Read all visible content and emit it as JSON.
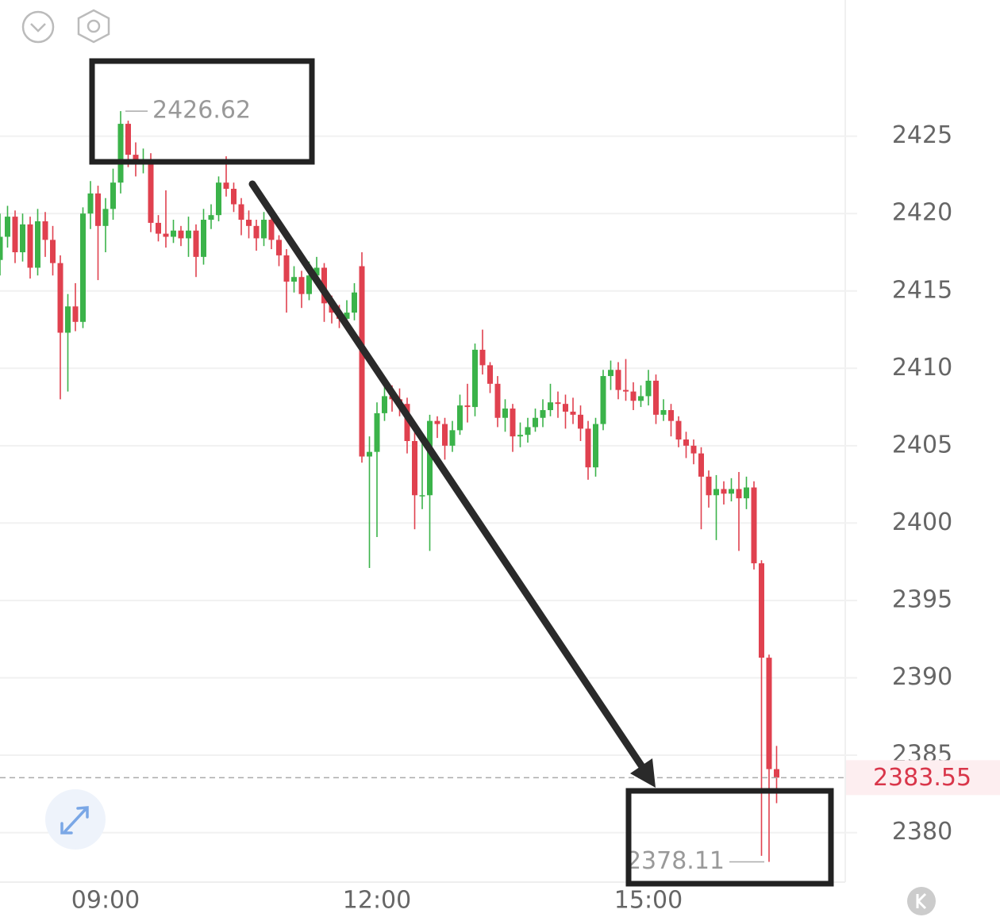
{
  "chart_data": {
    "type": "candlestick",
    "categories": [
      null,
      null,
      null,
      null,
      null,
      null,
      null,
      null,
      null,
      null,
      null,
      null,
      null,
      null,
      "09:00",
      null,
      null,
      null,
      null,
      null,
      null,
      null,
      null,
      null,
      null,
      null,
      null,
      null,
      null,
      null,
      null,
      null,
      null,
      null,
      null,
      null,
      null,
      null,
      null,
      null,
      null,
      null,
      null,
      null,
      null,
      null,
      null,
      null,
      null,
      null,
      "12:00",
      null,
      null,
      null,
      null,
      null,
      null,
      null,
      null,
      null,
      null,
      null,
      null,
      null,
      null,
      null,
      null,
      null,
      null,
      null,
      null,
      null,
      null,
      null,
      null,
      null,
      null,
      null,
      null,
      null,
      null,
      null,
      null,
      null,
      null,
      null,
      "15:00",
      null,
      null,
      null,
      null,
      null,
      null,
      null,
      null,
      null,
      null,
      null,
      null,
      null,
      null,
      null,
      null,
      null
    ],
    "open": [
      2417.0,
      2418.5,
      2419.8,
      2417.5,
      2419.3,
      2416.5,
      2419.5,
      2418.3,
      2416.8,
      2412.3,
      2414.0,
      2413.0,
      2420.0,
      2421.3,
      2419.2,
      2420.3,
      2422.0,
      2425.8,
      2423.8,
      2423.2,
      2423.5,
      2419.4,
      2418.7,
      2418.5,
      2418.9,
      2418.4,
      2418.9,
      2417.2,
      2419.6,
      2419.9,
      2422.0,
      2421.6,
      2420.6,
      2419.6,
      2419.2,
      2418.4,
      2419.6,
      2418.3,
      2417.3,
      2415.6,
      2415.9,
      2414.8,
      2416.0,
      2416.5,
      2414.2,
      2413.6,
      2413.2,
      2413.6,
      2416.6,
      2404.3,
      2404.6,
      2407.1,
      2408.2,
      2408.0,
      2407.7,
      2405.3,
      2401.8,
      2401.8,
      2406.6,
      2406.4,
      2405.0,
      2406.0,
      2407.6,
      2407.5,
      2411.2,
      2410.2,
      2409.0,
      2406.8,
      2407.4,
      2405.6,
      2405.7,
      2406.2,
      2406.8,
      2407.3,
      2407.8,
      2407.7,
      2407.2,
      2407.0,
      2406.1,
      2403.6,
      2406.4,
      2409.5,
      2409.9,
      2408.6,
      2408.5,
      2407.9,
      2408.2,
      2409.2,
      2407.0,
      2407.3,
      2406.6,
      2405.4,
      2405.0,
      2404.5,
      2403.0,
      2401.8,
      2402.2,
      2401.9,
      2402.2,
      2401.6,
      2402.3,
      2397.4,
      2391.3,
      2384.1
    ],
    "high": [
      2420.0,
      2420.5,
      2420.2,
      2420.0,
      2419.8,
      2420.3,
      2420.1,
      2419.2,
      2417.3,
      2414.8,
      2415.5,
      2420.4,
      2422.1,
      2421.8,
      2421.0,
      2422.9,
      2426.62,
      2426.0,
      2424.6,
      2424.2,
      2423.9,
      2419.9,
      2421.5,
      2419.6,
      2419.2,
      2419.8,
      2419.3,
      2420.3,
      2420.6,
      2422.4,
      2423.7,
      2422.0,
      2421.0,
      2420.2,
      2419.6,
      2420.1,
      2419.9,
      2418.6,
      2417.7,
      2416.6,
      2416.3,
      2416.9,
      2417.2,
      2416.8,
      2414.7,
      2414.1,
      2414.4,
      2415.5,
      2417.5,
      2405.6,
      2407.8,
      2409.0,
      2408.9,
      2408.7,
      2408.1,
      2405.9,
      2405.2,
      2407.0,
      2406.9,
      2406.8,
      2406.6,
      2408.3,
      2409.0,
      2411.6,
      2412.5,
      2410.4,
      2409.5,
      2408.0,
      2407.7,
      2406.5,
      2406.8,
      2407.4,
      2408.0,
      2409.0,
      2408.5,
      2408.3,
      2408.1,
      2407.6,
      2406.6,
      2406.8,
      2409.9,
      2410.5,
      2410.4,
      2410.6,
      2409.1,
      2408.9,
      2409.9,
      2409.6,
      2408.0,
      2407.7,
      2406.9,
      2405.9,
      2405.4,
      2404.9,
      2403.4,
      2403.1,
      2402.7,
      2402.9,
      2403.3,
      2403.0,
      2402.7,
      2397.6,
      2391.5,
      2385.6
    ],
    "low": [
      2416.0,
      2417.8,
      2416.8,
      2416.9,
      2415.8,
      2416.0,
      2417.2,
      2416.0,
      2408.0,
      2408.5,
      2412.4,
      2412.6,
      2419.0,
      2415.7,
      2417.5,
      2419.6,
      2421.3,
      2423.0,
      2422.4,
      2422.6,
      2418.8,
      2418.2,
      2417.8,
      2418.1,
      2417.9,
      2417.2,
      2415.9,
      2416.7,
      2419.0,
      2419.5,
      2421.1,
      2420.1,
      2418.6,
      2418.4,
      2417.6,
      2417.9,
      2417.7,
      2416.6,
      2413.6,
      2414.9,
      2413.9,
      2414.4,
      2415.4,
      2413.0,
      2412.9,
      2412.6,
      2412.8,
      2413.1,
      2403.9,
      2397.1,
      2399.1,
      2406.6,
      2407.2,
      2406.9,
      2404.5,
      2399.6,
      2400.9,
      2398.2,
      2405.5,
      2404.1,
      2404.6,
      2405.7,
      2406.5,
      2406.9,
      2409.6,
      2408.4,
      2406.2,
      2405.9,
      2404.6,
      2404.9,
      2405.2,
      2405.9,
      2406.2,
      2406.9,
      2406.8,
      2406.1,
      2406.4,
      2405.3,
      2402.8,
      2403.0,
      2406.0,
      2408.6,
      2408.0,
      2407.9,
      2407.3,
      2407.5,
      2407.6,
      2406.4,
      2406.6,
      2405.6,
      2404.9,
      2404.2,
      2403.8,
      2399.6,
      2401.0,
      2398.9,
      2401.2,
      2401.4,
      2398.2,
      2400.9,
      2397.0,
      2378.5,
      2378.11,
      2381.9
    ],
    "close": [
      2418.5,
      2419.8,
      2417.5,
      2419.3,
      2416.5,
      2419.5,
      2418.3,
      2416.8,
      2412.3,
      2414.0,
      2413.0,
      2420.0,
      2421.3,
      2419.2,
      2420.3,
      2422.0,
      2425.8,
      2423.8,
      2423.2,
      2423.5,
      2419.4,
      2418.7,
      2418.5,
      2418.9,
      2418.4,
      2418.9,
      2417.2,
      2419.6,
      2419.9,
      2422.0,
      2421.6,
      2420.6,
      2419.6,
      2419.2,
      2418.4,
      2419.6,
      2418.3,
      2417.3,
      2415.6,
      2415.9,
      2414.8,
      2416.0,
      2416.5,
      2414.2,
      2413.6,
      2413.2,
      2413.6,
      2414.9,
      2404.3,
      2404.6,
      2407.1,
      2408.2,
      2408.0,
      2407.7,
      2405.3,
      2401.8,
      2401.8,
      2406.6,
      2406.4,
      2405.0,
      2406.0,
      2407.6,
      2407.5,
      2411.2,
      2410.2,
      2409.0,
      2406.8,
      2407.4,
      2405.6,
      2405.7,
      2406.2,
      2406.8,
      2407.3,
      2407.8,
      2407.7,
      2407.2,
      2407.0,
      2406.1,
      2403.6,
      2406.4,
      2409.5,
      2409.9,
      2408.6,
      2408.5,
      2407.9,
      2408.2,
      2409.2,
      2407.0,
      2407.3,
      2406.6,
      2405.4,
      2405.0,
      2404.5,
      2403.0,
      2401.8,
      2402.2,
      2401.9,
      2402.2,
      2401.6,
      2402.3,
      2397.4,
      2391.3,
      2384.1,
      2383.55
    ],
    "up_color": "#3bb34a",
    "down_color": "#e0414f",
    "ylim": [
      2376.8,
      2433.8
    ],
    "yticks": [
      2380,
      2385,
      2390,
      2395,
      2400,
      2405,
      2410,
      2415,
      2420,
      2425
    ],
    "grid": true,
    "high_label": 2426.62,
    "low_label": 2378.11,
    "last_price": 2383.55,
    "last_price_color": "#d9364a"
  }
}
